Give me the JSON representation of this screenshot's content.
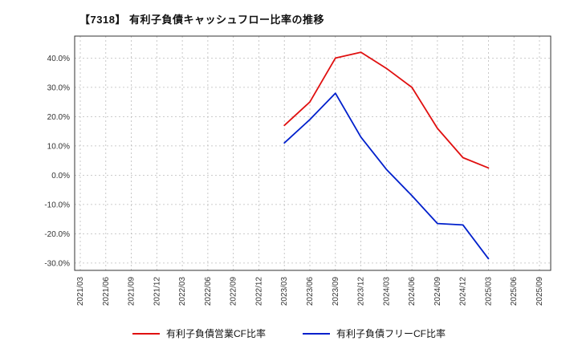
{
  "title": "【7318】 有利子負債キャッシュフロー比率の推移",
  "colors": {
    "series1": "#e01010",
    "series2": "#0020cc",
    "grid": "#bbbbbb",
    "axis_border": "#333333",
    "tick_text": "#333333"
  },
  "chart_data": {
    "type": "line",
    "title": "【7318】 有利子負債キャッシュフロー比率の推移",
    "categories": [
      "2021/03",
      "2021/06",
      "2021/09",
      "2021/12",
      "2022/03",
      "2022/06",
      "2022/09",
      "2022/12",
      "2023/03",
      "2023/06",
      "2023/09",
      "2023/12",
      "2024/03",
      "2024/06",
      "2024/09",
      "2024/12",
      "2025/03",
      "2025/06",
      "2025/09"
    ],
    "series": [
      {
        "name": "有利子負債営業CF比率",
        "color": "#e01010",
        "values": [
          null,
          null,
          null,
          null,
          null,
          null,
          null,
          null,
          17.0,
          25.0,
          40.0,
          42.0,
          36.5,
          30.0,
          16.0,
          6.0,
          2.5,
          null,
          null
        ]
      },
      {
        "name": "有利子負債フリーCF比率",
        "color": "#0020cc",
        "values": [
          null,
          null,
          null,
          null,
          null,
          null,
          null,
          null,
          11.0,
          19.0,
          28.0,
          13.0,
          2.0,
          -7.0,
          -16.5,
          -17.0,
          -28.5,
          null,
          null
        ]
      }
    ],
    "ylim": [
      -32.5,
      47.5
    ],
    "yticks": [
      40,
      30,
      20,
      10,
      0,
      -10,
      -20,
      -30
    ],
    "ytick_format": "percent_one_decimal",
    "grid": true,
    "legend_position": "bottom"
  }
}
